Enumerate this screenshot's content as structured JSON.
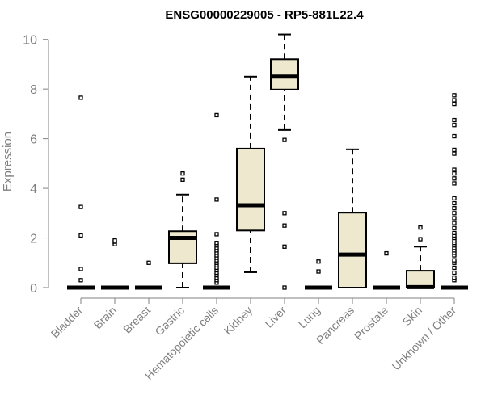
{
  "chart_data": {
    "type": "boxplot",
    "title": "ENSG00000229005 - RP5-881L22.4",
    "xlabel": "",
    "ylabel": "Expression",
    "ylim": [
      0,
      10
    ],
    "yticks": [
      "0",
      "2",
      "4",
      "6",
      "8",
      "10"
    ],
    "grid": false,
    "colors": {
      "box_fill": "#ede8ce",
      "axis": "#808080",
      "line": "#000000"
    },
    "categories": [
      "Bladder",
      "Brain",
      "Breast",
      "Gastric",
      "Hematopoietic cells",
      "Kidney",
      "Liver",
      "Lung",
      "Pancreas",
      "Prostate",
      "Skin",
      "Unknown / Other"
    ],
    "boxes": [
      {
        "low": 0,
        "q1": 0,
        "median": 0,
        "q3": 0,
        "high": 0,
        "outliers": [
          0.3,
          0.75,
          2.1,
          3.25,
          7.65
        ]
      },
      {
        "low": 0,
        "q1": 0,
        "median": 0,
        "q3": 0,
        "high": 0,
        "outliers": [
          1.75,
          1.85,
          1.9
        ]
      },
      {
        "low": 0,
        "q1": 0,
        "median": 0,
        "q3": 0,
        "high": 0,
        "outliers": [
          1.0
        ]
      },
      {
        "low": 0,
        "q1": 0.98,
        "median": 2.0,
        "q3": 2.27,
        "high": 3.75,
        "outliers": [
          4.35,
          4.6
        ]
      },
      {
        "low": 0,
        "q1": 0,
        "median": 0,
        "q3": 0,
        "high": 0,
        "outliers": [
          0.2,
          0.3,
          0.4,
          0.5,
          0.6,
          0.7,
          0.8,
          0.9,
          1.0,
          1.1,
          1.2,
          1.3,
          1.4,
          1.5,
          1.6,
          1.7,
          1.8,
          2.15,
          3.55,
          6.95
        ]
      },
      {
        "low": 0.62,
        "q1": 2.3,
        "median": 3.32,
        "q3": 5.6,
        "high": 8.5,
        "outliers": []
      },
      {
        "low": 6.35,
        "q1": 7.98,
        "median": 8.5,
        "q3": 9.2,
        "high": 10.2,
        "outliers": [
          0,
          1.65,
          2.5,
          3.0,
          5.95
        ]
      },
      {
        "low": 0,
        "q1": 0,
        "median": 0,
        "q3": 0,
        "high": 0,
        "outliers": [
          0.65,
          1.05
        ]
      },
      {
        "low": 0,
        "q1": 0,
        "median": 1.33,
        "q3": 3.02,
        "high": 5.57,
        "outliers": []
      },
      {
        "low": 0,
        "q1": 0,
        "median": 0,
        "q3": 0,
        "high": 0,
        "outliers": [
          1.38
        ]
      },
      {
        "low": 0,
        "q1": 0,
        "median": 0.02,
        "q3": 0.68,
        "high": 1.65,
        "outliers": [
          1.95,
          2.42
        ]
      },
      {
        "low": 0,
        "q1": 0,
        "median": 0,
        "q3": 0,
        "high": 0,
        "outliers": [
          0.3,
          0.4,
          0.6,
          0.8,
          1.0,
          1.1,
          1.3,
          1.4,
          1.5,
          1.6,
          1.7,
          1.8,
          1.9,
          2.0,
          2.1,
          2.2,
          2.4,
          2.6,
          2.8,
          3.0,
          3.2,
          3.4,
          3.6,
          4.2,
          4.4,
          4.6,
          4.75,
          5.4,
          5.55,
          6.1,
          6.55,
          6.75,
          7.4,
          7.55,
          7.75
        ]
      }
    ]
  }
}
